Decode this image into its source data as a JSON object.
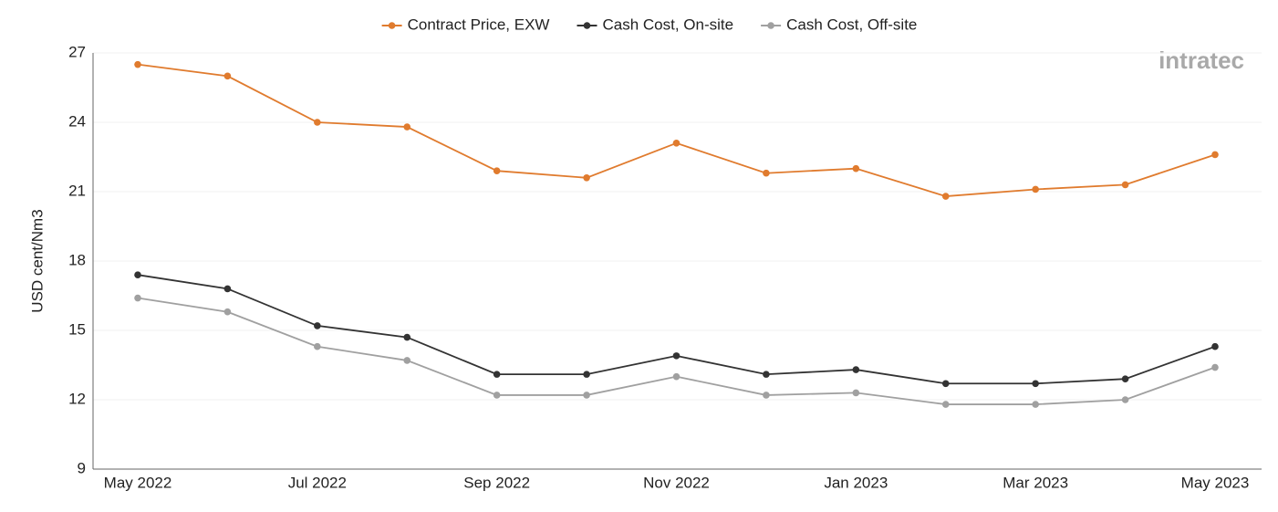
{
  "chart_data": {
    "type": "line",
    "y_label": "USD cent/Nm3",
    "logo": "intratec",
    "categories": [
      "May 2022",
      null,
      "Jul 2022",
      null,
      "Sep 2022",
      null,
      "Nov 2022",
      null,
      "Jan 2023",
      null,
      "Mar 2023",
      null,
      "May 2023"
    ],
    "series": [
      {
        "name": "Contract Price, EXW",
        "color": "#e07b2e",
        "values": [
          26.5,
          26.0,
          24.0,
          23.8,
          21.9,
          21.6,
          23.1,
          21.8,
          22.0,
          20.8,
          21.1,
          21.3,
          22.6
        ]
      },
      {
        "name": "Cash Cost, On-site",
        "color": "#333333",
        "values": [
          17.4,
          16.8,
          15.2,
          14.7,
          13.1,
          13.1,
          13.9,
          13.1,
          13.3,
          12.7,
          12.7,
          12.9,
          14.3
        ]
      },
      {
        "name": "Cash Cost, Off-site",
        "color": "#a0a0a0",
        "values": [
          16.4,
          15.8,
          14.3,
          13.7,
          12.2,
          12.2,
          13.0,
          12.2,
          12.3,
          11.8,
          11.8,
          12.0,
          13.4
        ]
      }
    ],
    "ylim": [
      9,
      27
    ],
    "yticks": [
      9,
      12,
      15,
      18,
      21,
      24,
      27
    ],
    "grid": true
  }
}
